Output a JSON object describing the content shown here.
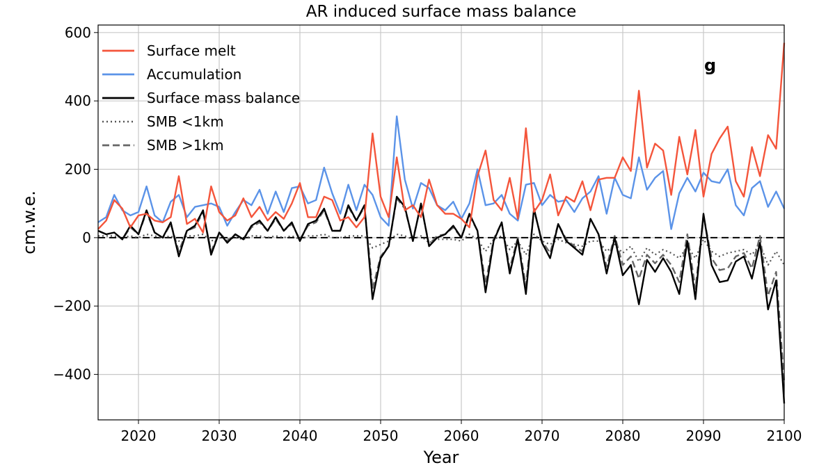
{
  "chart_data": {
    "type": "line",
    "title": "AR induced surface mass balance",
    "xlabel": "Year",
    "ylabel": "cm.w.e.",
    "panel_label": "g",
    "xlim": [
      2015,
      2100
    ],
    "ylim": [
      -533,
      622
    ],
    "xticks": [
      2020,
      2030,
      2040,
      2050,
      2060,
      2070,
      2080,
      2090,
      2100
    ],
    "yticks": [
      -400,
      -200,
      0,
      200,
      400,
      600
    ],
    "ytick_labels": [
      "−400",
      "−200",
      "0",
      "200",
      "400",
      "600"
    ],
    "grid": true,
    "legend_position": "top-left",
    "zero_line": {
      "y": 0,
      "style": "dashed",
      "color": "#000000"
    },
    "x_start": 2015,
    "series": [
      {
        "name": "Surface melt",
        "color": "#f4553b",
        "style": "solid",
        "values": [
          25,
          50,
          110,
          85,
          30,
          65,
          70,
          50,
          45,
          60,
          180,
          40,
          55,
          15,
          150,
          75,
          50,
          65,
          115,
          60,
          90,
          50,
          75,
          55,
          100,
          160,
          60,
          60,
          120,
          110,
          50,
          60,
          30,
          60,
          305,
          120,
          60,
          235,
          80,
          95,
          60,
          170,
          95,
          70,
          70,
          55,
          30,
          180,
          255,
          110,
          80,
          175,
          55,
          320,
          75,
          110,
          185,
          65,
          120,
          105,
          165,
          80,
          170,
          175,
          175,
          235,
          195,
          430,
          205,
          275,
          255,
          125,
          295,
          185,
          315,
          120,
          245,
          290,
          325,
          165,
          120,
          265,
          180,
          300,
          260,
          570
        ]
      },
      {
        "name": "Accumulation",
        "color": "#5b93e8",
        "style": "solid",
        "values": [
          45,
          60,
          125,
          80,
          65,
          75,
          150,
          65,
          45,
          105,
          125,
          60,
          90,
          95,
          100,
          90,
          35,
          75,
          110,
          95,
          140,
          70,
          135,
          75,
          145,
          150,
          100,
          110,
          205,
          130,
          70,
          155,
          80,
          155,
          125,
          60,
          35,
          355,
          170,
          85,
          160,
          145,
          95,
          80,
          105,
          55,
          100,
          200,
          95,
          100,
          125,
          70,
          50,
          155,
          160,
          95,
          125,
          105,
          110,
          75,
          115,
          135,
          180,
          70,
          175,
          125,
          115,
          235,
          140,
          175,
          195,
          25,
          130,
          175,
          135,
          190,
          165,
          160,
          200,
          95,
          65,
          145,
          165,
          90,
          135,
          85
        ]
      },
      {
        "name": "Surface mass balance",
        "color": "#000000",
        "style": "solid",
        "values": [
          20,
          10,
          15,
          -5,
          35,
          10,
          80,
          15,
          0,
          45,
          -55,
          20,
          35,
          80,
          -50,
          15,
          -15,
          10,
          -5,
          35,
          50,
          20,
          60,
          20,
          45,
          -10,
          40,
          50,
          85,
          20,
          20,
          95,
          50,
          95,
          -180,
          -60,
          -25,
          120,
          90,
          -10,
          100,
          -25,
          0,
          10,
          35,
          0,
          70,
          20,
          -160,
          -10,
          45,
          -105,
          -5,
          -165,
          85,
          -15,
          -60,
          40,
          -10,
          -30,
          -50,
          55,
          10,
          -105,
          0,
          -110,
          -80,
          -195,
          -65,
          -100,
          -60,
          -100,
          -165,
          -10,
          -180,
          70,
          -80,
          -130,
          -125,
          -70,
          -55,
          -120,
          -15,
          -210,
          -125,
          -485
        ]
      },
      {
        "name": "SMB <1km",
        "color": "#555555",
        "style": "dotted",
        "values": [
          5,
          5,
          5,
          0,
          5,
          0,
          10,
          5,
          0,
          5,
          -10,
          5,
          5,
          10,
          -10,
          0,
          -5,
          0,
          -5,
          5,
          5,
          0,
          5,
          0,
          5,
          -5,
          5,
          5,
          10,
          0,
          0,
          5,
          5,
          5,
          -30,
          -20,
          -10,
          10,
          5,
          -5,
          5,
          -15,
          -5,
          -5,
          -5,
          -10,
          10,
          -5,
          -40,
          -5,
          5,
          -35,
          -10,
          -50,
          10,
          -10,
          -20,
          -5,
          -15,
          -20,
          -25,
          -10,
          -10,
          -40,
          -20,
          -45,
          -25,
          -70,
          -30,
          -50,
          -35,
          -45,
          -60,
          -25,
          -60,
          -5,
          -40,
          -55,
          -45,
          -40,
          -35,
          -50,
          -20,
          -80,
          -40,
          -80
        ]
      },
      {
        "name": "SMB >1km",
        "color": "#666666",
        "style": "dashed",
        "values": [
          20,
          10,
          15,
          -5,
          30,
          10,
          75,
          15,
          0,
          40,
          -40,
          20,
          30,
          75,
          -40,
          15,
          -10,
          10,
          -5,
          30,
          45,
          20,
          55,
          20,
          40,
          -5,
          35,
          45,
          80,
          20,
          20,
          90,
          50,
          90,
          -150,
          -55,
          -25,
          115,
          85,
          -5,
          95,
          -20,
          5,
          10,
          30,
          0,
          65,
          20,
          -135,
          -5,
          45,
          -90,
          0,
          -140,
          80,
          -10,
          -45,
          40,
          -5,
          -25,
          -40,
          55,
          10,
          -85,
          5,
          -80,
          -55,
          -120,
          -50,
          -75,
          -50,
          -80,
          -130,
          10,
          -150,
          65,
          -60,
          -95,
          -90,
          -55,
          -45,
          -90,
          5,
          -170,
          -100,
          -420
        ]
      }
    ]
  }
}
